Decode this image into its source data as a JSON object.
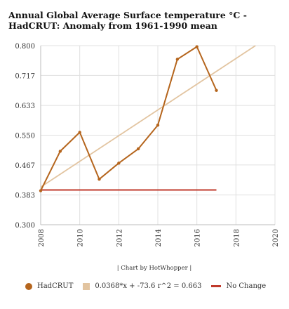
{
  "title": "Annual Global Average Surface temperature °C - HadCRUT: Anomaly from 1961-1990 mean",
  "credit": "| Chart by HotWhopper |",
  "colors": {
    "hadcrut": "#b5651d",
    "trend": "#e2c4a0",
    "nochange": "#c0392b",
    "grid": "#e0e0e0",
    "axis": "#bdbdbd"
  },
  "chart_data": {
    "type": "line",
    "title": "Annual Global Average Surface temperature °C - HadCRUT: Anomaly from 1961-1990 mean",
    "xlabel": "",
    "ylabel": "",
    "xlim": [
      2008,
      2020
    ],
    "ylim": [
      0.3,
      0.8
    ],
    "x_ticks": [
      "2008",
      "2010",
      "2012",
      "2014",
      "2016",
      "2018",
      "2020"
    ],
    "y_ticks": [
      "0.800",
      "0.717",
      "0.633",
      "0.550",
      "0.467",
      "0.383",
      "0.300"
    ],
    "grid": true,
    "legend_position": "bottom",
    "series": [
      {
        "name": "HadCRUT",
        "color": "#b5651d",
        "x": [
          2008,
          2009,
          2010,
          2011,
          2012,
          2013,
          2014,
          2015,
          2016,
          2017
        ],
        "y": [
          0.395,
          0.505,
          0.558,
          0.427,
          0.472,
          0.512,
          0.578,
          0.762,
          0.797,
          0.675
        ]
      },
      {
        "name": "0.0368*x + -73.6 r^2 = 0.663",
        "color": "#e2c4a0",
        "x": [
          2008,
          2019
        ],
        "y": [
          0.405,
          0.8
        ]
      },
      {
        "name": "No Change",
        "color": "#c0392b",
        "x": [
          2008,
          2017
        ],
        "y": [
          0.397,
          0.397
        ]
      }
    ]
  }
}
